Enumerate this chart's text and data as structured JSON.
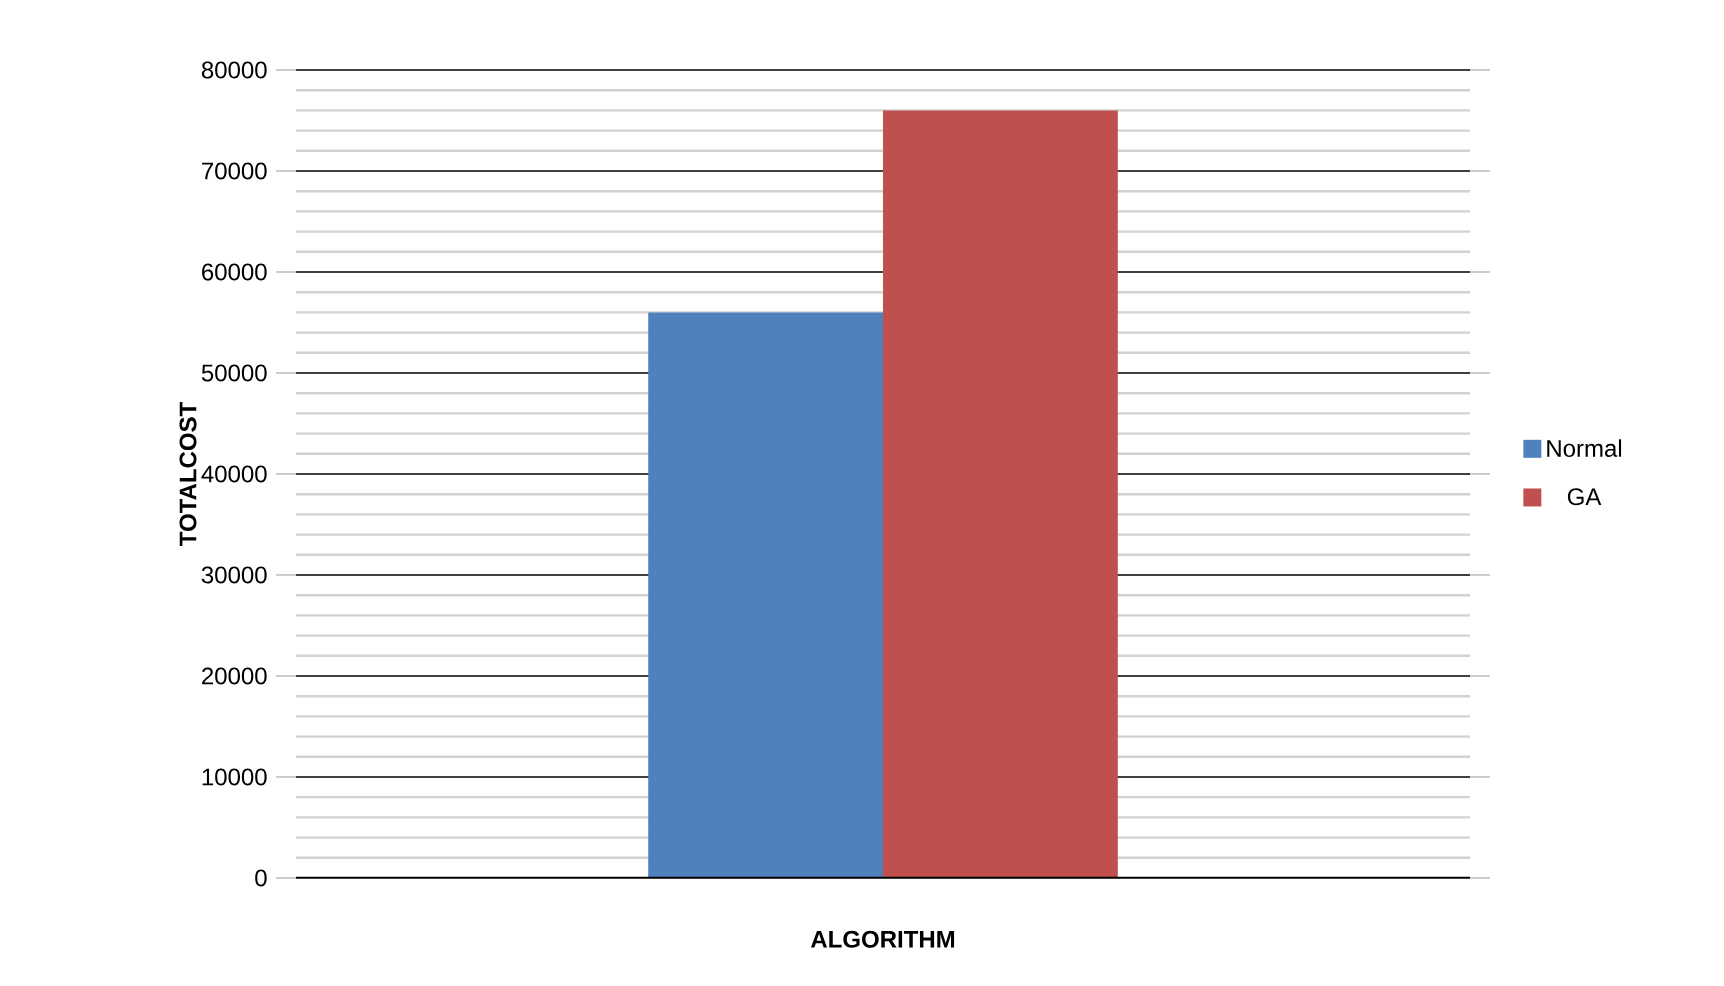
{
  "chart_data": {
    "type": "bar",
    "xlabel": "ALGORITHM",
    "ylabel": "TOTALCOST",
    "categories": [
      null
    ],
    "series": [
      {
        "name": "Normal",
        "color": "#4f81bd",
        "values": [
          56000
        ]
      },
      {
        "name": "GA",
        "color": "#c0504d",
        "values": [
          76000
        ]
      }
    ],
    "ylim": [
      0,
      80000
    ],
    "yticks": [
      0,
      10000,
      20000,
      30000,
      40000,
      50000,
      60000,
      70000,
      80000
    ],
    "grid": "y",
    "legend": "right"
  }
}
